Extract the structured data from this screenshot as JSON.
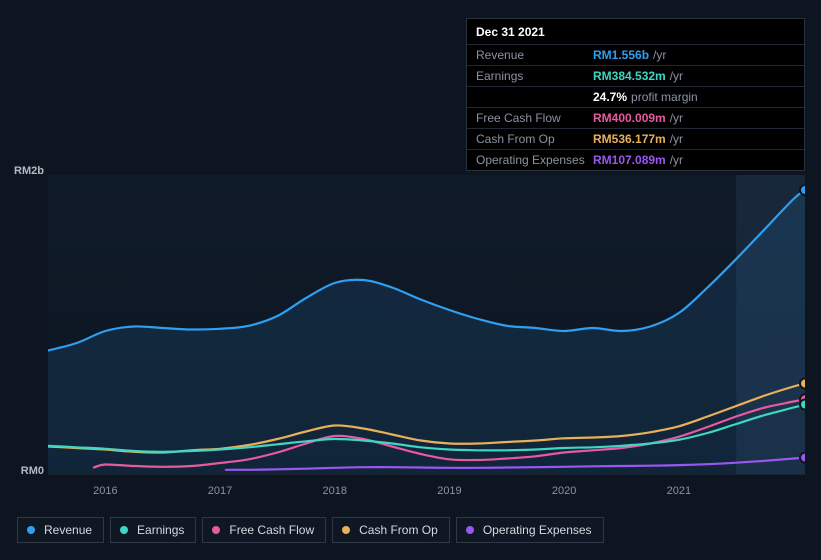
{
  "background_color": "#0d1520",
  "tooltip": {
    "border_color": "#2a3240",
    "date": "Dec 31 2021",
    "rows": [
      {
        "label": "Revenue",
        "value": "RM1.556b",
        "suffix": "/yr",
        "color": "#2f9ff2"
      },
      {
        "label": "Earnings",
        "value": "RM384.532m",
        "suffix": "/yr",
        "color": "#3fd6c3"
      },
      {
        "label": "",
        "value": "24.7%",
        "suffix": "profit margin",
        "color": "#ffffff"
      },
      {
        "label": "Free Cash Flow",
        "value": "RM400.009m",
        "suffix": "/yr",
        "color": "#e85aa0"
      },
      {
        "label": "Cash From Op",
        "value": "RM536.177m",
        "suffix": "/yr",
        "color": "#e8b05a"
      },
      {
        "label": "Operating Expenses",
        "value": "RM107.089m",
        "suffix": "/yr",
        "color": "#9a57f0"
      }
    ]
  },
  "chart": {
    "type": "area-line",
    "xlim": [
      2015.5,
      2022.1
    ],
    "ylim": [
      0,
      2000
    ],
    "y_labels": [
      {
        "text": "RM2b",
        "y": 2000
      },
      {
        "text": "RM0",
        "y": 0
      }
    ],
    "x_ticks": [
      2016,
      2017,
      2018,
      2019,
      2020,
      2021
    ],
    "plot_bg_gradient": {
      "top": "#101b2a",
      "bottom": "#0d1520"
    },
    "gridline_color": "#1a2230",
    "highlight_band": {
      "from": 2021.5,
      "to": 2022.1,
      "color": "rgba(80,120,160,0.14)"
    },
    "axis_label_color": "#8b93a1",
    "axis_label_fontsize": 11,
    "line_width": 2.2,
    "area_opacity": 0.12,
    "end_markers": true,
    "marker_radius": 5,
    "series": [
      {
        "name": "Revenue",
        "color": "#2f9ff2",
        "fill": true,
        "x": [
          2015.5,
          2015.75,
          2016,
          2016.25,
          2016.5,
          2016.75,
          2017,
          2017.25,
          2017.5,
          2017.75,
          2018,
          2018.25,
          2018.5,
          2018.75,
          2019,
          2019.25,
          2019.5,
          2019.75,
          2020,
          2020.25,
          2020.5,
          2020.75,
          2021,
          2021.25,
          2021.5,
          2021.75,
          2022,
          2022.1
        ],
        "y": [
          830,
          880,
          960,
          990,
          980,
          970,
          975,
          995,
          1060,
          1180,
          1280,
          1300,
          1250,
          1170,
          1100,
          1040,
          995,
          980,
          960,
          980,
          960,
          990,
          1080,
          1250,
          1440,
          1640,
          1840,
          1900
        ]
      },
      {
        "name": "Cash From Op",
        "color": "#e8b05a",
        "fill": false,
        "x": [
          2015.5,
          2015.75,
          2016,
          2016.25,
          2016.5,
          2016.75,
          2017,
          2017.25,
          2017.5,
          2017.75,
          2018,
          2018.25,
          2018.5,
          2018.75,
          2019,
          2019.25,
          2019.5,
          2019.75,
          2020,
          2020.25,
          2020.5,
          2020.75,
          2021,
          2021.25,
          2021.5,
          2021.75,
          2022,
          2022.1
        ],
        "y": [
          190,
          180,
          170,
          155,
          150,
          165,
          175,
          200,
          240,
          290,
          330,
          310,
          270,
          230,
          210,
          210,
          220,
          230,
          245,
          250,
          260,
          285,
          325,
          390,
          460,
          530,
          590,
          610
        ]
      },
      {
        "name": "Free Cash Flow",
        "color": "#e85aa0",
        "fill": false,
        "start_x": 2015.9,
        "x": [
          2015.9,
          2016,
          2016.25,
          2016.5,
          2016.75,
          2017,
          2017.25,
          2017.5,
          2017.75,
          2018,
          2018.25,
          2018.5,
          2018.75,
          2019,
          2019.25,
          2019.5,
          2019.75,
          2020,
          2020.25,
          2020.5,
          2020.75,
          2021,
          2021.25,
          2021.5,
          2021.75,
          2022,
          2022.1
        ],
        "y": [
          50,
          70,
          60,
          55,
          60,
          80,
          105,
          150,
          210,
          260,
          240,
          190,
          140,
          105,
          100,
          110,
          125,
          150,
          165,
          180,
          210,
          255,
          320,
          390,
          450,
          490,
          505
        ]
      },
      {
        "name": "Earnings",
        "color": "#3fd6c3",
        "fill": false,
        "x": [
          2015.5,
          2015.75,
          2016,
          2016.25,
          2016.5,
          2016.75,
          2017,
          2017.25,
          2017.5,
          2017.75,
          2018,
          2018.25,
          2018.5,
          2018.75,
          2019,
          2019.25,
          2019.5,
          2019.75,
          2020,
          2020.25,
          2020.5,
          2020.75,
          2021,
          2021.25,
          2021.5,
          2021.75,
          2022,
          2022.1
        ],
        "y": [
          195,
          185,
          175,
          160,
          155,
          160,
          170,
          185,
          205,
          225,
          240,
          230,
          210,
          185,
          170,
          165,
          165,
          170,
          180,
          185,
          195,
          210,
          235,
          280,
          340,
          400,
          450,
          470
        ]
      },
      {
        "name": "Operating Expenses",
        "color": "#9a57f0",
        "fill": false,
        "start_x": 2017.05,
        "x": [
          2017.05,
          2017.25,
          2017.5,
          2017.75,
          2018,
          2018.25,
          2018.5,
          2018.75,
          2019,
          2019.25,
          2019.5,
          2019.75,
          2020,
          2020.25,
          2020.5,
          2020.75,
          2021,
          2021.25,
          2021.5,
          2021.75,
          2022,
          2022.1
        ],
        "y": [
          35,
          35,
          38,
          42,
          48,
          52,
          52,
          50,
          48,
          48,
          50,
          52,
          55,
          58,
          60,
          62,
          66,
          72,
          82,
          95,
          110,
          116
        ]
      }
    ]
  },
  "legend": {
    "items": [
      {
        "label": "Revenue",
        "color": "#2f9ff2"
      },
      {
        "label": "Earnings",
        "color": "#3fd6c3"
      },
      {
        "label": "Free Cash Flow",
        "color": "#e85aa0"
      },
      {
        "label": "Cash From Op",
        "color": "#e8b05a"
      },
      {
        "label": "Operating Expenses",
        "color": "#9a57f0"
      }
    ],
    "border_color": "#2e3846",
    "text_color": "#d4d9e0",
    "fontsize": 12
  }
}
